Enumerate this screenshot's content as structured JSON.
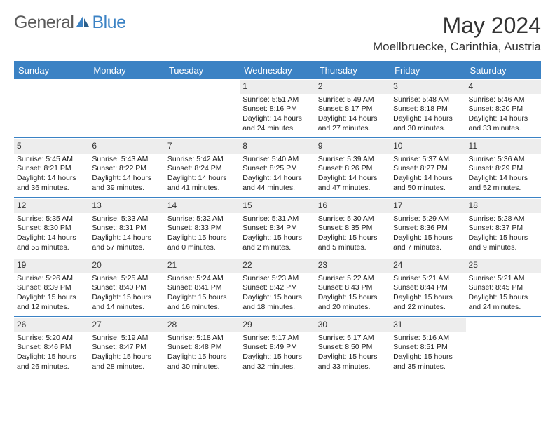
{
  "logo": {
    "text1": "General",
    "text2": "Blue"
  },
  "title": "May 2024",
  "location": "Moellbruecke, Carinthia, Austria",
  "colors": {
    "header_bg": "#3b82c4",
    "header_text": "#ffffff",
    "daynum_bg": "#ededed",
    "rule": "#3b82c4",
    "logo_blue": "#3b82c4",
    "logo_gray": "#5a5a5a"
  },
  "dow": [
    "Sunday",
    "Monday",
    "Tuesday",
    "Wednesday",
    "Thursday",
    "Friday",
    "Saturday"
  ],
  "weeks": [
    [
      {
        "empty": true
      },
      {
        "empty": true
      },
      {
        "empty": true
      },
      {
        "day": "1",
        "sunrise": "5:51 AM",
        "sunset": "8:16 PM",
        "daylight": "14 hours and 24 minutes."
      },
      {
        "day": "2",
        "sunrise": "5:49 AM",
        "sunset": "8:17 PM",
        "daylight": "14 hours and 27 minutes."
      },
      {
        "day": "3",
        "sunrise": "5:48 AM",
        "sunset": "8:18 PM",
        "daylight": "14 hours and 30 minutes."
      },
      {
        "day": "4",
        "sunrise": "5:46 AM",
        "sunset": "8:20 PM",
        "daylight": "14 hours and 33 minutes."
      }
    ],
    [
      {
        "day": "5",
        "sunrise": "5:45 AM",
        "sunset": "8:21 PM",
        "daylight": "14 hours and 36 minutes."
      },
      {
        "day": "6",
        "sunrise": "5:43 AM",
        "sunset": "8:22 PM",
        "daylight": "14 hours and 39 minutes."
      },
      {
        "day": "7",
        "sunrise": "5:42 AM",
        "sunset": "8:24 PM",
        "daylight": "14 hours and 41 minutes."
      },
      {
        "day": "8",
        "sunrise": "5:40 AM",
        "sunset": "8:25 PM",
        "daylight": "14 hours and 44 minutes."
      },
      {
        "day": "9",
        "sunrise": "5:39 AM",
        "sunset": "8:26 PM",
        "daylight": "14 hours and 47 minutes."
      },
      {
        "day": "10",
        "sunrise": "5:37 AM",
        "sunset": "8:27 PM",
        "daylight": "14 hours and 50 minutes."
      },
      {
        "day": "11",
        "sunrise": "5:36 AM",
        "sunset": "8:29 PM",
        "daylight": "14 hours and 52 minutes."
      }
    ],
    [
      {
        "day": "12",
        "sunrise": "5:35 AM",
        "sunset": "8:30 PM",
        "daylight": "14 hours and 55 minutes."
      },
      {
        "day": "13",
        "sunrise": "5:33 AM",
        "sunset": "8:31 PM",
        "daylight": "14 hours and 57 minutes."
      },
      {
        "day": "14",
        "sunrise": "5:32 AM",
        "sunset": "8:33 PM",
        "daylight": "15 hours and 0 minutes."
      },
      {
        "day": "15",
        "sunrise": "5:31 AM",
        "sunset": "8:34 PM",
        "daylight": "15 hours and 2 minutes."
      },
      {
        "day": "16",
        "sunrise": "5:30 AM",
        "sunset": "8:35 PM",
        "daylight": "15 hours and 5 minutes."
      },
      {
        "day": "17",
        "sunrise": "5:29 AM",
        "sunset": "8:36 PM",
        "daylight": "15 hours and 7 minutes."
      },
      {
        "day": "18",
        "sunrise": "5:28 AM",
        "sunset": "8:37 PM",
        "daylight": "15 hours and 9 minutes."
      }
    ],
    [
      {
        "day": "19",
        "sunrise": "5:26 AM",
        "sunset": "8:39 PM",
        "daylight": "15 hours and 12 minutes."
      },
      {
        "day": "20",
        "sunrise": "5:25 AM",
        "sunset": "8:40 PM",
        "daylight": "15 hours and 14 minutes."
      },
      {
        "day": "21",
        "sunrise": "5:24 AM",
        "sunset": "8:41 PM",
        "daylight": "15 hours and 16 minutes."
      },
      {
        "day": "22",
        "sunrise": "5:23 AM",
        "sunset": "8:42 PM",
        "daylight": "15 hours and 18 minutes."
      },
      {
        "day": "23",
        "sunrise": "5:22 AM",
        "sunset": "8:43 PM",
        "daylight": "15 hours and 20 minutes."
      },
      {
        "day": "24",
        "sunrise": "5:21 AM",
        "sunset": "8:44 PM",
        "daylight": "15 hours and 22 minutes."
      },
      {
        "day": "25",
        "sunrise": "5:21 AM",
        "sunset": "8:45 PM",
        "daylight": "15 hours and 24 minutes."
      }
    ],
    [
      {
        "day": "26",
        "sunrise": "5:20 AM",
        "sunset": "8:46 PM",
        "daylight": "15 hours and 26 minutes."
      },
      {
        "day": "27",
        "sunrise": "5:19 AM",
        "sunset": "8:47 PM",
        "daylight": "15 hours and 28 minutes."
      },
      {
        "day": "28",
        "sunrise": "5:18 AM",
        "sunset": "8:48 PM",
        "daylight": "15 hours and 30 minutes."
      },
      {
        "day": "29",
        "sunrise": "5:17 AM",
        "sunset": "8:49 PM",
        "daylight": "15 hours and 32 minutes."
      },
      {
        "day": "30",
        "sunrise": "5:17 AM",
        "sunset": "8:50 PM",
        "daylight": "15 hours and 33 minutes."
      },
      {
        "day": "31",
        "sunrise": "5:16 AM",
        "sunset": "8:51 PM",
        "daylight": "15 hours and 35 minutes."
      },
      {
        "empty": true
      }
    ]
  ],
  "labels": {
    "sunrise": "Sunrise:",
    "sunset": "Sunset:",
    "daylight": "Daylight:"
  }
}
